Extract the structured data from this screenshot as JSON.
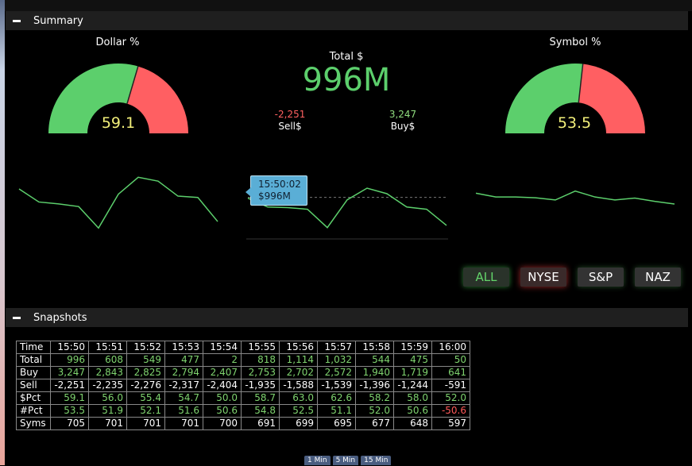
{
  "summary": {
    "title": "Summary",
    "dollar_pct": {
      "label": "Dollar %",
      "value": "59.1",
      "fraction": 0.591
    },
    "symbol_pct": {
      "label": "Symbol %",
      "value": "53.5",
      "fraction": 0.535
    },
    "total": {
      "label": "Total $",
      "value": "996M"
    },
    "sell": {
      "value": "-2,251",
      "label": "Sell$"
    },
    "buy": {
      "value": "3,247",
      "label": "Buy$"
    },
    "tooltip": {
      "time": "15:50:02",
      "value": "$996M"
    },
    "sparklines": {
      "left": [
        0.22,
        0.42,
        0.45,
        0.49,
        0.82,
        0.3,
        0.04,
        0.1,
        0.33,
        0.35,
        0.72
      ],
      "middle": [
        0.28,
        0.44,
        0.45,
        0.48,
        0.81,
        0.31,
        0.1,
        0.2,
        0.44,
        0.48,
        0.77
      ],
      "right": [
        0.1,
        0.24,
        0.24,
        0.27,
        0.35,
        0.02,
        0.24,
        0.35,
        0.28,
        0.4,
        0.5
      ]
    },
    "filters": [
      "ALL",
      "NYSE",
      "S&P",
      "NAZ"
    ],
    "colors": {
      "green": "#5ccf6c",
      "red": "#ff5f62",
      "accent": "#5aaed6"
    }
  },
  "snapshots": {
    "title": "Snapshots",
    "columns": [
      "15:50",
      "15:51",
      "15:52",
      "15:53",
      "15:54",
      "15:55",
      "15:56",
      "15:57",
      "15:58",
      "15:59",
      "16:00"
    ],
    "rows": [
      {
        "label": "Time",
        "cells": []
      },
      {
        "label": "Total",
        "cells": [
          "996",
          "608",
          "549",
          "477",
          "2",
          "818",
          "1,114",
          "1,032",
          "544",
          "475",
          "50"
        ]
      },
      {
        "label": "Buy",
        "cells": [
          "3,247",
          "2,843",
          "2,825",
          "2,794",
          "2,407",
          "2,753",
          "2,702",
          "2,572",
          "1,940",
          "1,719",
          "641"
        ]
      },
      {
        "label": "Sell",
        "cells": [
          "-2,251",
          "-2,235",
          "-2,276",
          "-2,317",
          "-2,404",
          "-1,935",
          "-1,588",
          "-1,539",
          "-1,396",
          "-1,244",
          "-591"
        ]
      },
      {
        "label": "$Pct",
        "cells": [
          "59.1",
          "56.0",
          "55.4",
          "54.7",
          "50.0",
          "58.7",
          "63.0",
          "62.6",
          "58.2",
          "58.0",
          "52.0"
        ]
      },
      {
        "label": "#Pct",
        "cells": [
          "53.5",
          "51.9",
          "52.1",
          "51.6",
          "50.6",
          "54.8",
          "52.5",
          "51.1",
          "52.0",
          "50.6",
          "-50.6"
        ]
      },
      {
        "label": "Syms",
        "cells": [
          "705",
          "701",
          "701",
          "701",
          "700",
          "691",
          "699",
          "695",
          "677",
          "648",
          "597"
        ]
      }
    ]
  },
  "bottom_tabs": [
    "1 Min",
    "5 Min",
    "15 Min"
  ]
}
